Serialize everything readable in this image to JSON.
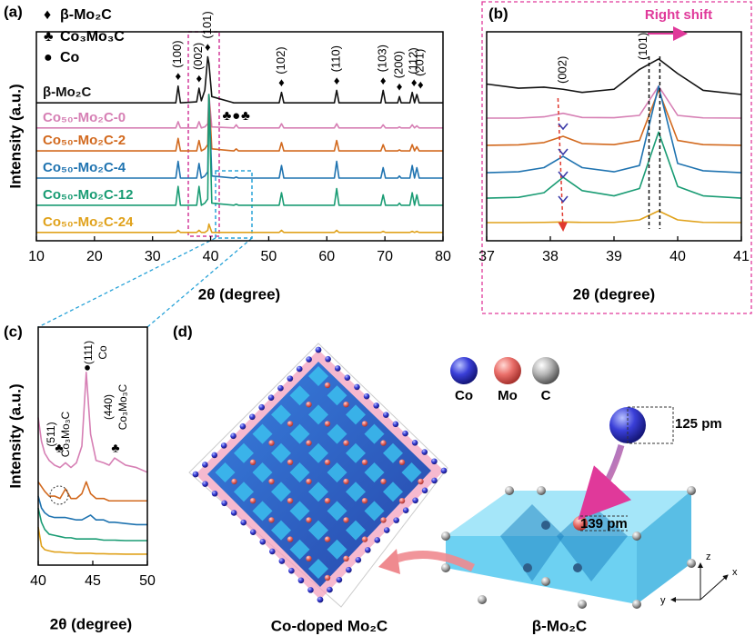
{
  "chart_data": [
    {
      "type": "line",
      "panel_label": "(a)",
      "xlabel": "2θ (degree)",
      "ylabel": "Intensity (a.u.)",
      "xlim": [
        10,
        80
      ],
      "xticks": [
        10,
        20,
        30,
        40,
        50,
        60,
        70,
        80
      ],
      "ylim": [
        0,
        100
      ],
      "legend": [
        {
          "symbol": "♦",
          "label": "β-Mo₂C"
        },
        {
          "symbol": "♣",
          "label": "Co₃Mo₃C"
        },
        {
          "symbol": "●",
          "label": "Co"
        }
      ],
      "annotations": [
        {
          "text": "(100)",
          "x": 34.4
        },
        {
          "text": "(002)",
          "x": 38
        },
        {
          "text": "(101)",
          "x": 39.5
        },
        {
          "text": "(102)",
          "x": 52.2
        },
        {
          "text": "(110)",
          "x": 61.7
        },
        {
          "text": "(103)",
          "x": 69.7
        },
        {
          "text": "(200)",
          "x": 72.5
        },
        {
          "text": "(112)",
          "x": 74.7
        },
        {
          "text": "(201)",
          "x": 75.5
        }
      ],
      "x": [
        10,
        34,
        34.4,
        34.8,
        37.6,
        38,
        38.4,
        39,
        39.5,
        39.7,
        40.2,
        44,
        44.4,
        44.8,
        51.8,
        52.2,
        52.6,
        61.3,
        61.7,
        62.1,
        69.3,
        69.7,
        70.1,
        72.2,
        72.5,
        72.8,
        74.3,
        74.7,
        75.1,
        75.5,
        75.9,
        80
      ],
      "series": [
        {
          "name": "β-Mo₂C",
          "color": "#111111",
          "values": [
            66,
            66,
            74,
            66,
            66.5,
            73,
            67,
            72,
            88,
            85,
            69,
            66,
            66,
            66,
            66,
            71,
            66,
            66,
            72,
            66,
            66,
            72,
            66,
            66,
            69,
            66,
            66,
            71,
            66,
            70,
            66,
            66
          ]
        },
        {
          "name": "Co₅₀-Mo₂C-0",
          "color": "#d67fb4",
          "values": [
            54,
            54,
            57,
            54,
            54,
            57,
            54,
            54.5,
            56,
            70,
            54.5,
            54,
            55.5,
            54,
            54,
            56,
            54,
            54,
            56,
            54,
            54,
            55.5,
            54,
            54,
            54.5,
            54,
            54,
            55.5,
            54,
            55,
            54,
            54
          ]
        },
        {
          "name": "Co₅₀-Mo₂C-2",
          "color": "#d2691e",
          "values": [
            43,
            43,
            49,
            43,
            43,
            48,
            43,
            44,
            46,
            70,
            44,
            43,
            44,
            43,
            43,
            47,
            43,
            43,
            48,
            43,
            43,
            46,
            43,
            43,
            43.5,
            43,
            43,
            46,
            43,
            45,
            43,
            43
          ]
        },
        {
          "name": "Co₅₀-Mo₂C-4",
          "color": "#1f73b0",
          "values": [
            30,
            30,
            38,
            30,
            30,
            37,
            30,
            31,
            33,
            70,
            31,
            30,
            30.5,
            30,
            30,
            36,
            30,
            30,
            38,
            30,
            30,
            35,
            30,
            30,
            31,
            30,
            30,
            36,
            30,
            35,
            30,
            30
          ]
        },
        {
          "name": "Co₅₀-Mo₂C-12",
          "color": "#1a9c74",
          "values": [
            17,
            17,
            26,
            17,
            17,
            26,
            17,
            18,
            20,
            70,
            18,
            17,
            17.5,
            17,
            17,
            23,
            17,
            17,
            25,
            17,
            17,
            22,
            17,
            17,
            18,
            17,
            17,
            23,
            17,
            22,
            17,
            17
          ]
        },
        {
          "name": "Co₅₀-Mo₂C-24",
          "color": "#e0a21c",
          "values": [
            4,
            4,
            5,
            4,
            4,
            5,
            4,
            4,
            5,
            8,
            4,
            4,
            4,
            4,
            4,
            5,
            4,
            4,
            5,
            4,
            4,
            4.5,
            4,
            4,
            4,
            4,
            4,
            4.5,
            4,
            4.5,
            4,
            4
          ]
        }
      ]
    },
    {
      "type": "line",
      "panel_label": "(b)",
      "xlabel": "2θ (degree)",
      "xlim": [
        37,
        41
      ],
      "xticks": [
        37,
        38,
        39,
        40,
        41
      ],
      "ylim": [
        0,
        100
      ],
      "annotations": [
        {
          "text": "(002)",
          "x": 38.2
        },
        {
          "text": "(101)",
          "x": 39.55
        },
        {
          "text": "Right shift"
        }
      ],
      "x": [
        37,
        37.5,
        37.9,
        38.2,
        38.5,
        39,
        39.4,
        39.7,
        40,
        40.4,
        41
      ],
      "series": [
        {
          "color": "#111111",
          "values": [
            75,
            73,
            73.5,
            72.5,
            71,
            72.5,
            82,
            87,
            80,
            72,
            70
          ]
        },
        {
          "color": "#d67fb4",
          "values": [
            58.7,
            58.7,
            59.3,
            61,
            59,
            58.9,
            60,
            74,
            60,
            58.8,
            58.7
          ]
        },
        {
          "color": "#d2691e",
          "values": [
            45.7,
            45.9,
            47,
            50,
            46.5,
            46,
            48,
            72,
            48,
            46,
            45.7
          ]
        },
        {
          "color": "#1f73b0",
          "values": [
            32.6,
            33,
            35,
            40.4,
            35,
            33,
            36,
            74,
            37,
            33.5,
            32.6
          ]
        },
        {
          "color": "#1a9c74",
          "values": [
            20.4,
            20.8,
            23,
            30.4,
            24,
            21.5,
            25,
            52,
            26,
            21.5,
            20.4
          ]
        },
        {
          "color": "#e0a21c",
          "values": [
            8.7,
            8.7,
            8.8,
            9,
            8.8,
            8.8,
            10,
            14.3,
            10,
            8.8,
            8.7
          ]
        }
      ]
    },
    {
      "type": "line",
      "panel_label": "(c)",
      "xlabel": "2θ (degree)",
      "ylabel": "Intensity (a.u.)",
      "xlim": [
        40,
        50
      ],
      "xticks": [
        40,
        45,
        50
      ],
      "ylim": [
        0,
        100
      ],
      "annotations": [
        {
          "text": "(511)",
          "x": 42.1
        },
        {
          "text": "Co₃Mo₃C",
          "x": 42.1
        },
        {
          "text": "(111)",
          "x": 44.4
        },
        {
          "text": "Co",
          "x": 44.4
        },
        {
          "text": "(440)",
          "x": 47.3
        },
        {
          "text": "Co₃Mo₃C",
          "x": 47.3
        }
      ],
      "x": [
        40,
        40.3,
        40.6,
        41,
        41.5,
        42,
        42.5,
        43,
        43.5,
        44,
        44.4,
        44.8,
        45.3,
        46,
        46.5,
        47,
        48,
        49,
        50
      ],
      "series": [
        {
          "color": "#d67fb4",
          "values": [
            62,
            52,
            47,
            44,
            42,
            41,
            43,
            41,
            43,
            50,
            81,
            55,
            44,
            43,
            42,
            45,
            42,
            41,
            39
          ]
        },
        {
          "color": "#d2691e",
          "values": [
            35,
            33,
            31,
            29,
            29,
            28,
            32,
            28,
            28,
            30,
            35,
            30,
            28,
            28,
            27,
            27,
            27,
            27,
            27
          ]
        },
        {
          "color": "#1f73b0",
          "values": [
            29,
            24,
            22,
            20.6,
            20,
            20,
            20,
            19.5,
            19,
            19,
            20,
            21,
            19,
            19,
            18,
            18,
            17.5,
            17,
            17
          ]
        },
        {
          "color": "#1a9c74",
          "values": [
            24,
            18,
            15,
            13,
            12.5,
            12,
            11.5,
            11.5,
            11,
            11,
            11,
            11,
            11,
            10.5,
            10.5,
            10.5,
            10.3,
            10.3,
            10.3
          ]
        },
        {
          "color": "#e0a21c",
          "values": [
            16,
            8,
            6.5,
            6,
            5.5,
            5.5,
            5.2,
            5.2,
            5,
            5,
            5,
            5,
            4.8,
            4.8,
            4.7,
            4.7,
            4.6,
            4.6,
            4.6
          ]
        }
      ]
    }
  ],
  "diagram": {
    "panel_label": "(d)",
    "atoms": [
      "Co",
      "Mo",
      "C"
    ],
    "co_radius": "125 pm",
    "mo_radius": "139 pm",
    "left_caption": "Co-doped Mo₂C",
    "right_caption": "β-Mo₂C",
    "axes": [
      "z",
      "x",
      "y"
    ]
  }
}
